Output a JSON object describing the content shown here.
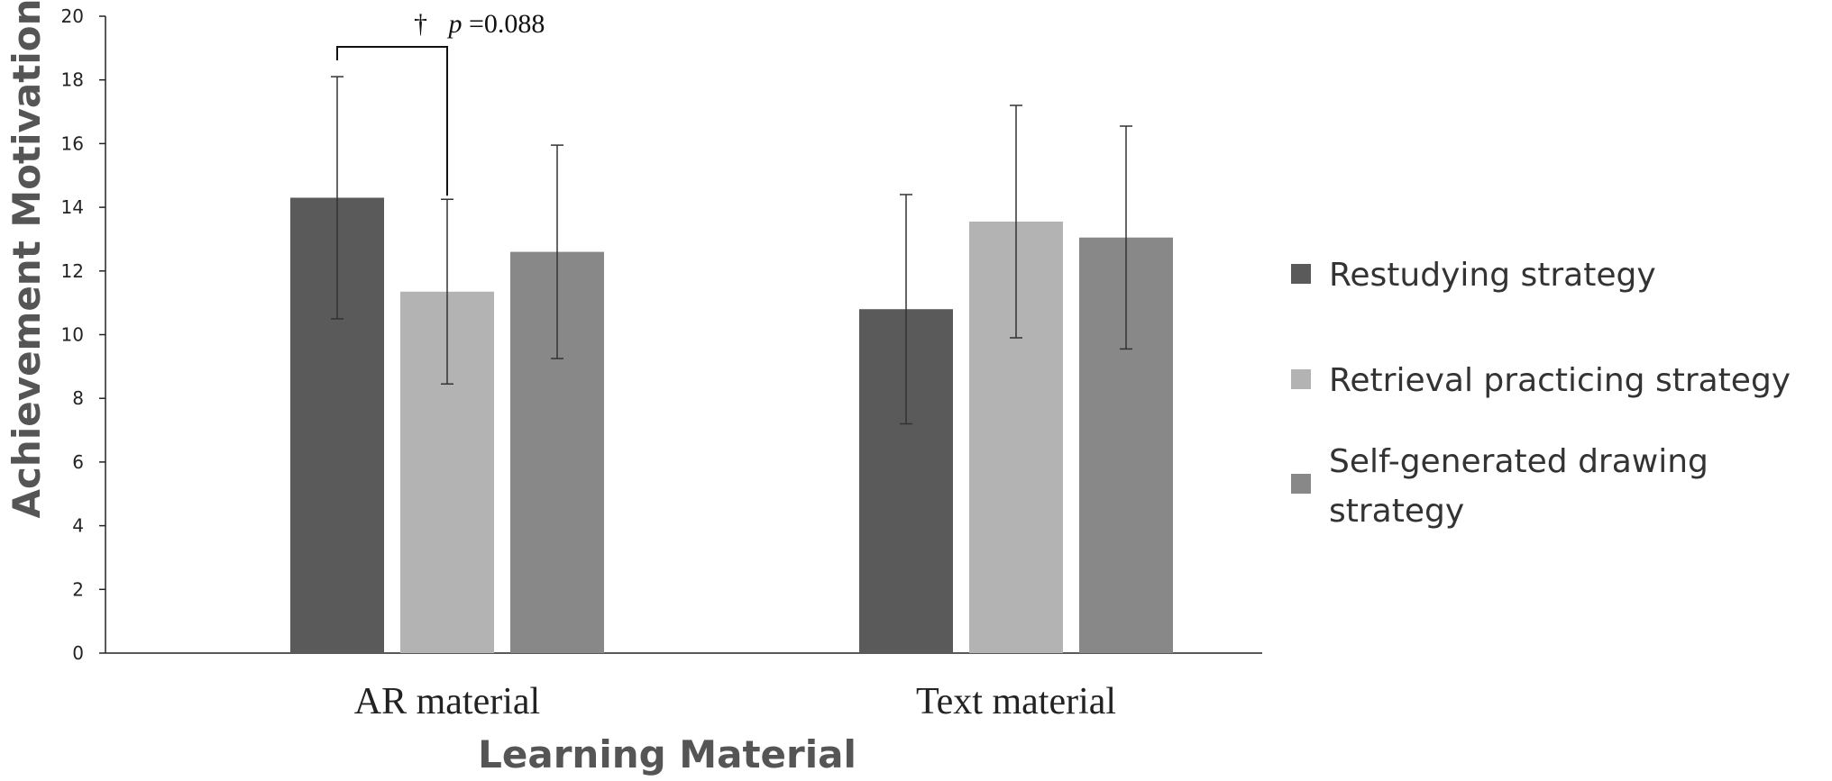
{
  "chart_data": {
    "type": "bar",
    "title": "",
    "xlabel": "Learning Material",
    "ylabel": "Achievement Motivation",
    "ylim": [
      0,
      20
    ],
    "yticks": [
      0,
      2,
      4,
      6,
      8,
      10,
      12,
      14,
      16,
      18,
      20
    ],
    "categories": [
      "AR material",
      "Text material"
    ],
    "series": [
      {
        "name": "Restudying strategy",
        "color": "#5a5a5a",
        "values": [
          14.3,
          10.8
        ],
        "error": [
          3.8,
          3.6
        ]
      },
      {
        "name": "Retrieval practicing strategy",
        "color": "#b3b3b3",
        "values": [
          11.35,
          13.55
        ],
        "error": [
          2.9,
          3.65
        ]
      },
      {
        "name": "Self-generated drawing strategy",
        "color": "#888888",
        "values": [
          12.6,
          13.05
        ],
        "error": [
          3.35,
          3.5
        ]
      }
    ],
    "legend_position": "right",
    "grid": false,
    "annotations": [
      {
        "dagger": "†",
        "p_symbol": "p",
        "p_value": "=0.088",
        "category": "AR material",
        "between_series": [
          "Restudying strategy",
          "Retrieval practicing strategy"
        ]
      }
    ]
  }
}
